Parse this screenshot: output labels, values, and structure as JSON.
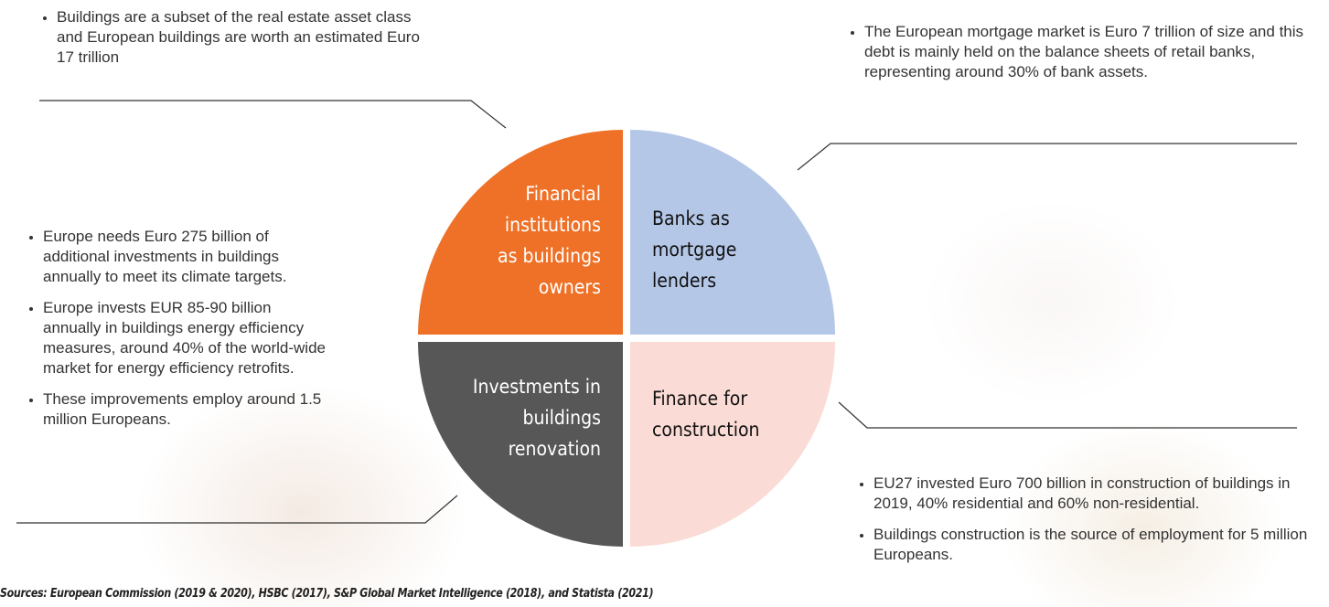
{
  "top_left": {
    "bullets": [
      "Buildings are a subset of the real estate asset class and European buildings are worth an estimated Euro 17 trillion"
    ]
  },
  "top_right": {
    "bullets": [
      "The European mortgage market is Euro 7 trillion of size and this debt is mainly held on the balance sheets of retail banks, representing around 30% of bank assets."
    ]
  },
  "left": {
    "bullets": [
      "Europe needs Euro 275 billion of additional investments in buildings annually to meet its climate targets.",
      "Europe invests EUR 85-90 billion annually in buildings energy efficiency measures, around 40% of the world-wide market for energy efficiency retrofits.",
      "These improvements employ around 1.5 million Europeans."
    ]
  },
  "bottom_right": {
    "bullets": [
      "EU27 invested Euro 700 billion in construction of buildings in 2019, 40% residential and 60% non-residential.",
      "Buildings construction is the source of employment for 5 million Europeans."
    ]
  },
  "quadrants": [
    {
      "lines": [
        "Financial",
        "institutions",
        "as buildings",
        "owners"
      ]
    },
    {
      "lines": [
        "Banks as",
        "mortgage",
        "lenders"
      ]
    },
    {
      "lines": [
        "Investments in",
        "buildings",
        "renovation"
      ]
    },
    {
      "lines": [
        "Finance for",
        "construction"
      ]
    }
  ],
  "sources": "Sources: European Commission (2019 & 2020), HSBC (2017), S&P Global Market Intelligence (2018), and Statista (2021)"
}
